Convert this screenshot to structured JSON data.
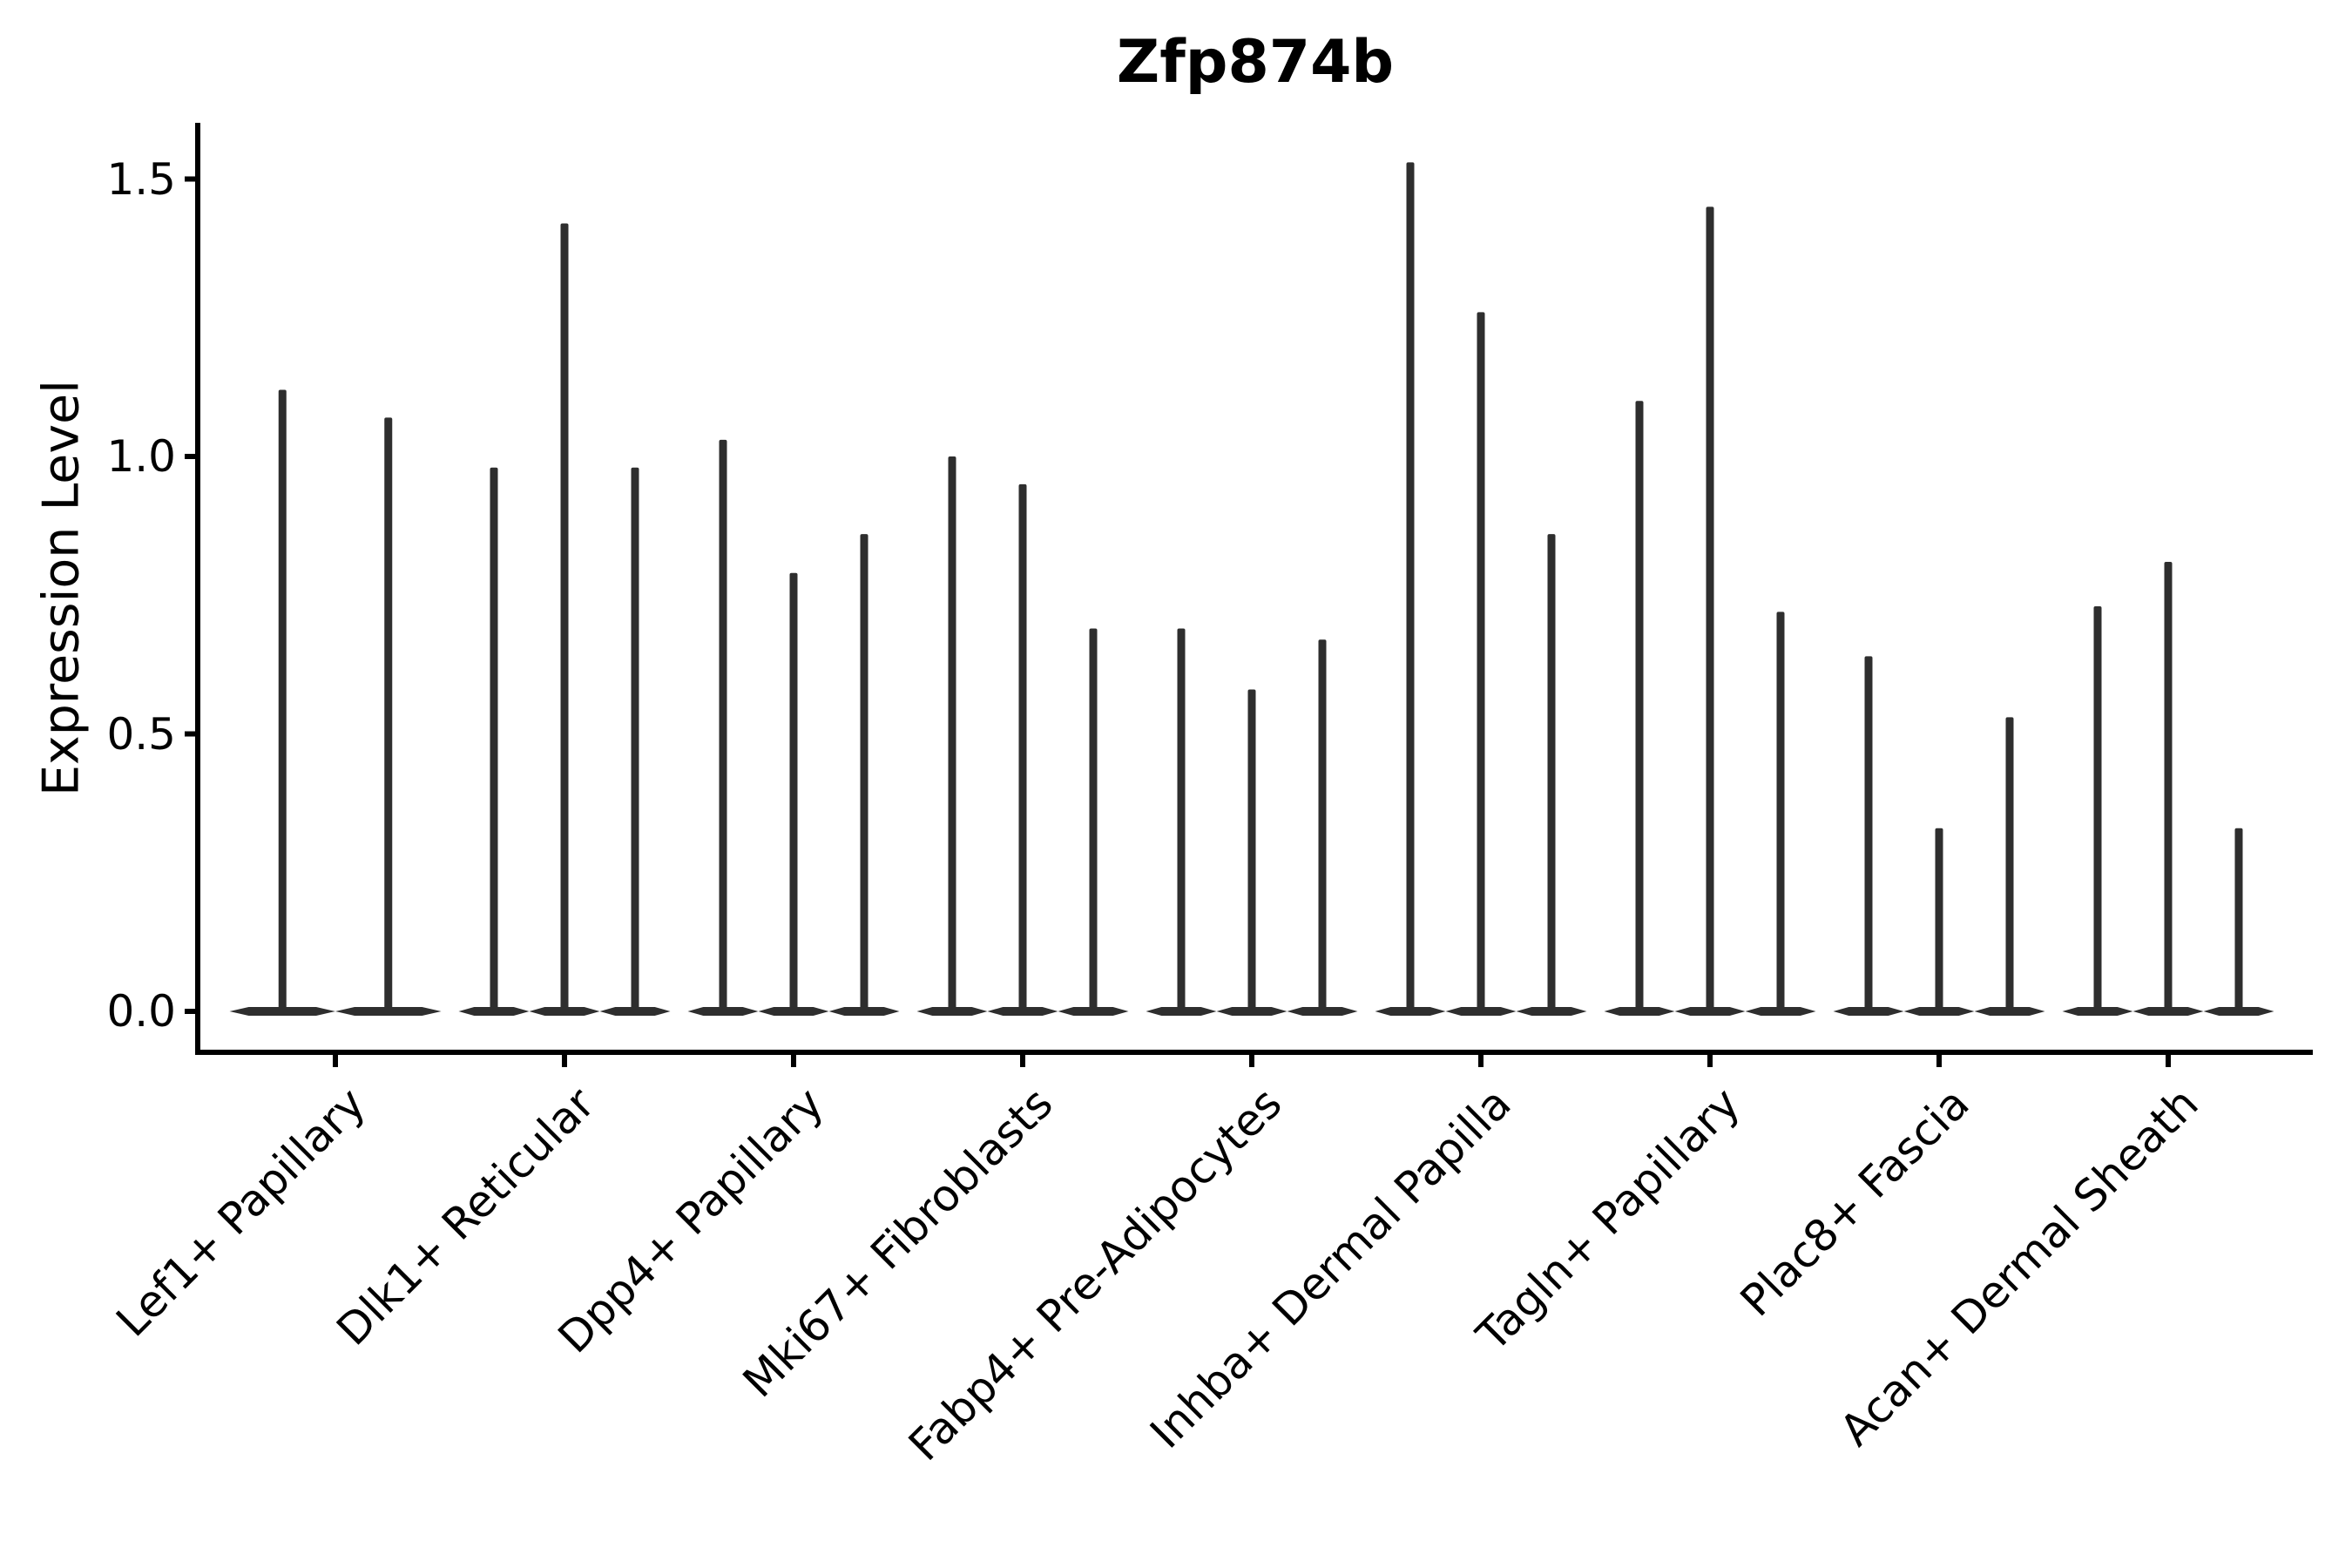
{
  "chart_data": {
    "type": "violin",
    "title": "Zfp874b",
    "ylabel": "Expression Level",
    "xlabel": "",
    "y_ticks": [
      0.0,
      0.5,
      1.0,
      1.5
    ],
    "y_tick_labels": [
      "0.0",
      "0.5",
      "1.0",
      "1.5"
    ],
    "ylim": [
      -0.07,
      1.6
    ],
    "legend": "none",
    "grid": false,
    "description": "Violin plot; each group shows 2-3 very thin spike-shaped violins (density concentrated at 0 with a thin tail to the max expression value).",
    "categories": [
      "Lef1+ Papillary",
      "Dlk1+ Reticular",
      "Dpp4+ Papillary",
      "Mki67+ Fibroblasts",
      "Fabp4+ Pre-Adipocytes",
      "Inhba+ Dermal Papilla",
      "Tagln+ Papillary",
      "Plac8+ Fascia",
      "Acan+ Dermal Sheath"
    ],
    "groups": [
      {
        "label": "Lef1+ Papillary",
        "violin_max": [
          1.12,
          1.07
        ]
      },
      {
        "label": "Dlk1+ Reticular",
        "violin_max": [
          0.98,
          1.42,
          0.98
        ]
      },
      {
        "label": "Dpp4+ Papillary",
        "violin_max": [
          1.03,
          0.79,
          0.86
        ]
      },
      {
        "label": "Mki67+ Fibroblasts",
        "violin_max": [
          1.0,
          0.95,
          0.69
        ]
      },
      {
        "label": "Fabp4+ Pre-Adipocytes",
        "violin_max": [
          0.69,
          0.58,
          0.67
        ]
      },
      {
        "label": "Inhba+ Dermal Papilla",
        "violin_max": [
          1.53,
          1.26,
          0.86
        ]
      },
      {
        "label": "Tagln+ Papillary",
        "violin_max": [
          1.1,
          1.45,
          0.72
        ]
      },
      {
        "label": "Plac8+ Fascia",
        "violin_max": [
          0.64,
          0.33,
          0.53
        ]
      },
      {
        "label": "Acan+ Dermal Sheath",
        "violin_max": [
          0.73,
          0.81,
          0.33
        ]
      }
    ],
    "colors": {
      "axis": "#000000",
      "text": "#000000",
      "violin": "#2e2e2e",
      "background": "#ffffff"
    }
  }
}
